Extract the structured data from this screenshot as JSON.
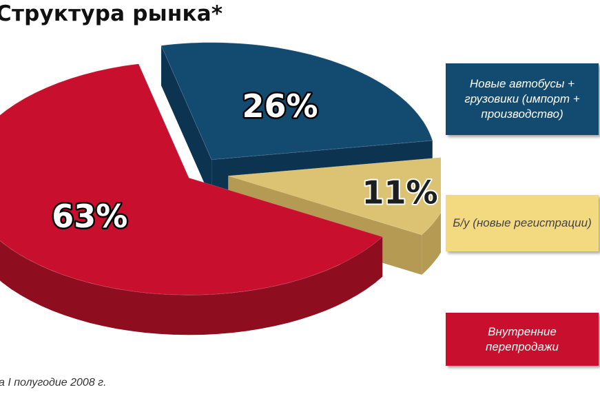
{
  "chart_data": {
    "type": "pie",
    "title": "Структура рынка*",
    "series": [
      {
        "name": "Новые автобусы + грузовики (импорт + производство)",
        "value": 26,
        "label": "26%",
        "color": "#134b70",
        "side_color": "#0c3350"
      },
      {
        "name": "Б/у (новые регистрации)",
        "value": 11,
        "label": "11%",
        "color": "#dcc373",
        "side_color": "#b49a52"
      },
      {
        "name": "Внутренние перепродажи",
        "value": 63,
        "label": "63%",
        "color": "#c8102e",
        "side_color": "#8e0d1f"
      }
    ],
    "legend_position": "right",
    "footnote": "а I полугодие 2008 г."
  }
}
